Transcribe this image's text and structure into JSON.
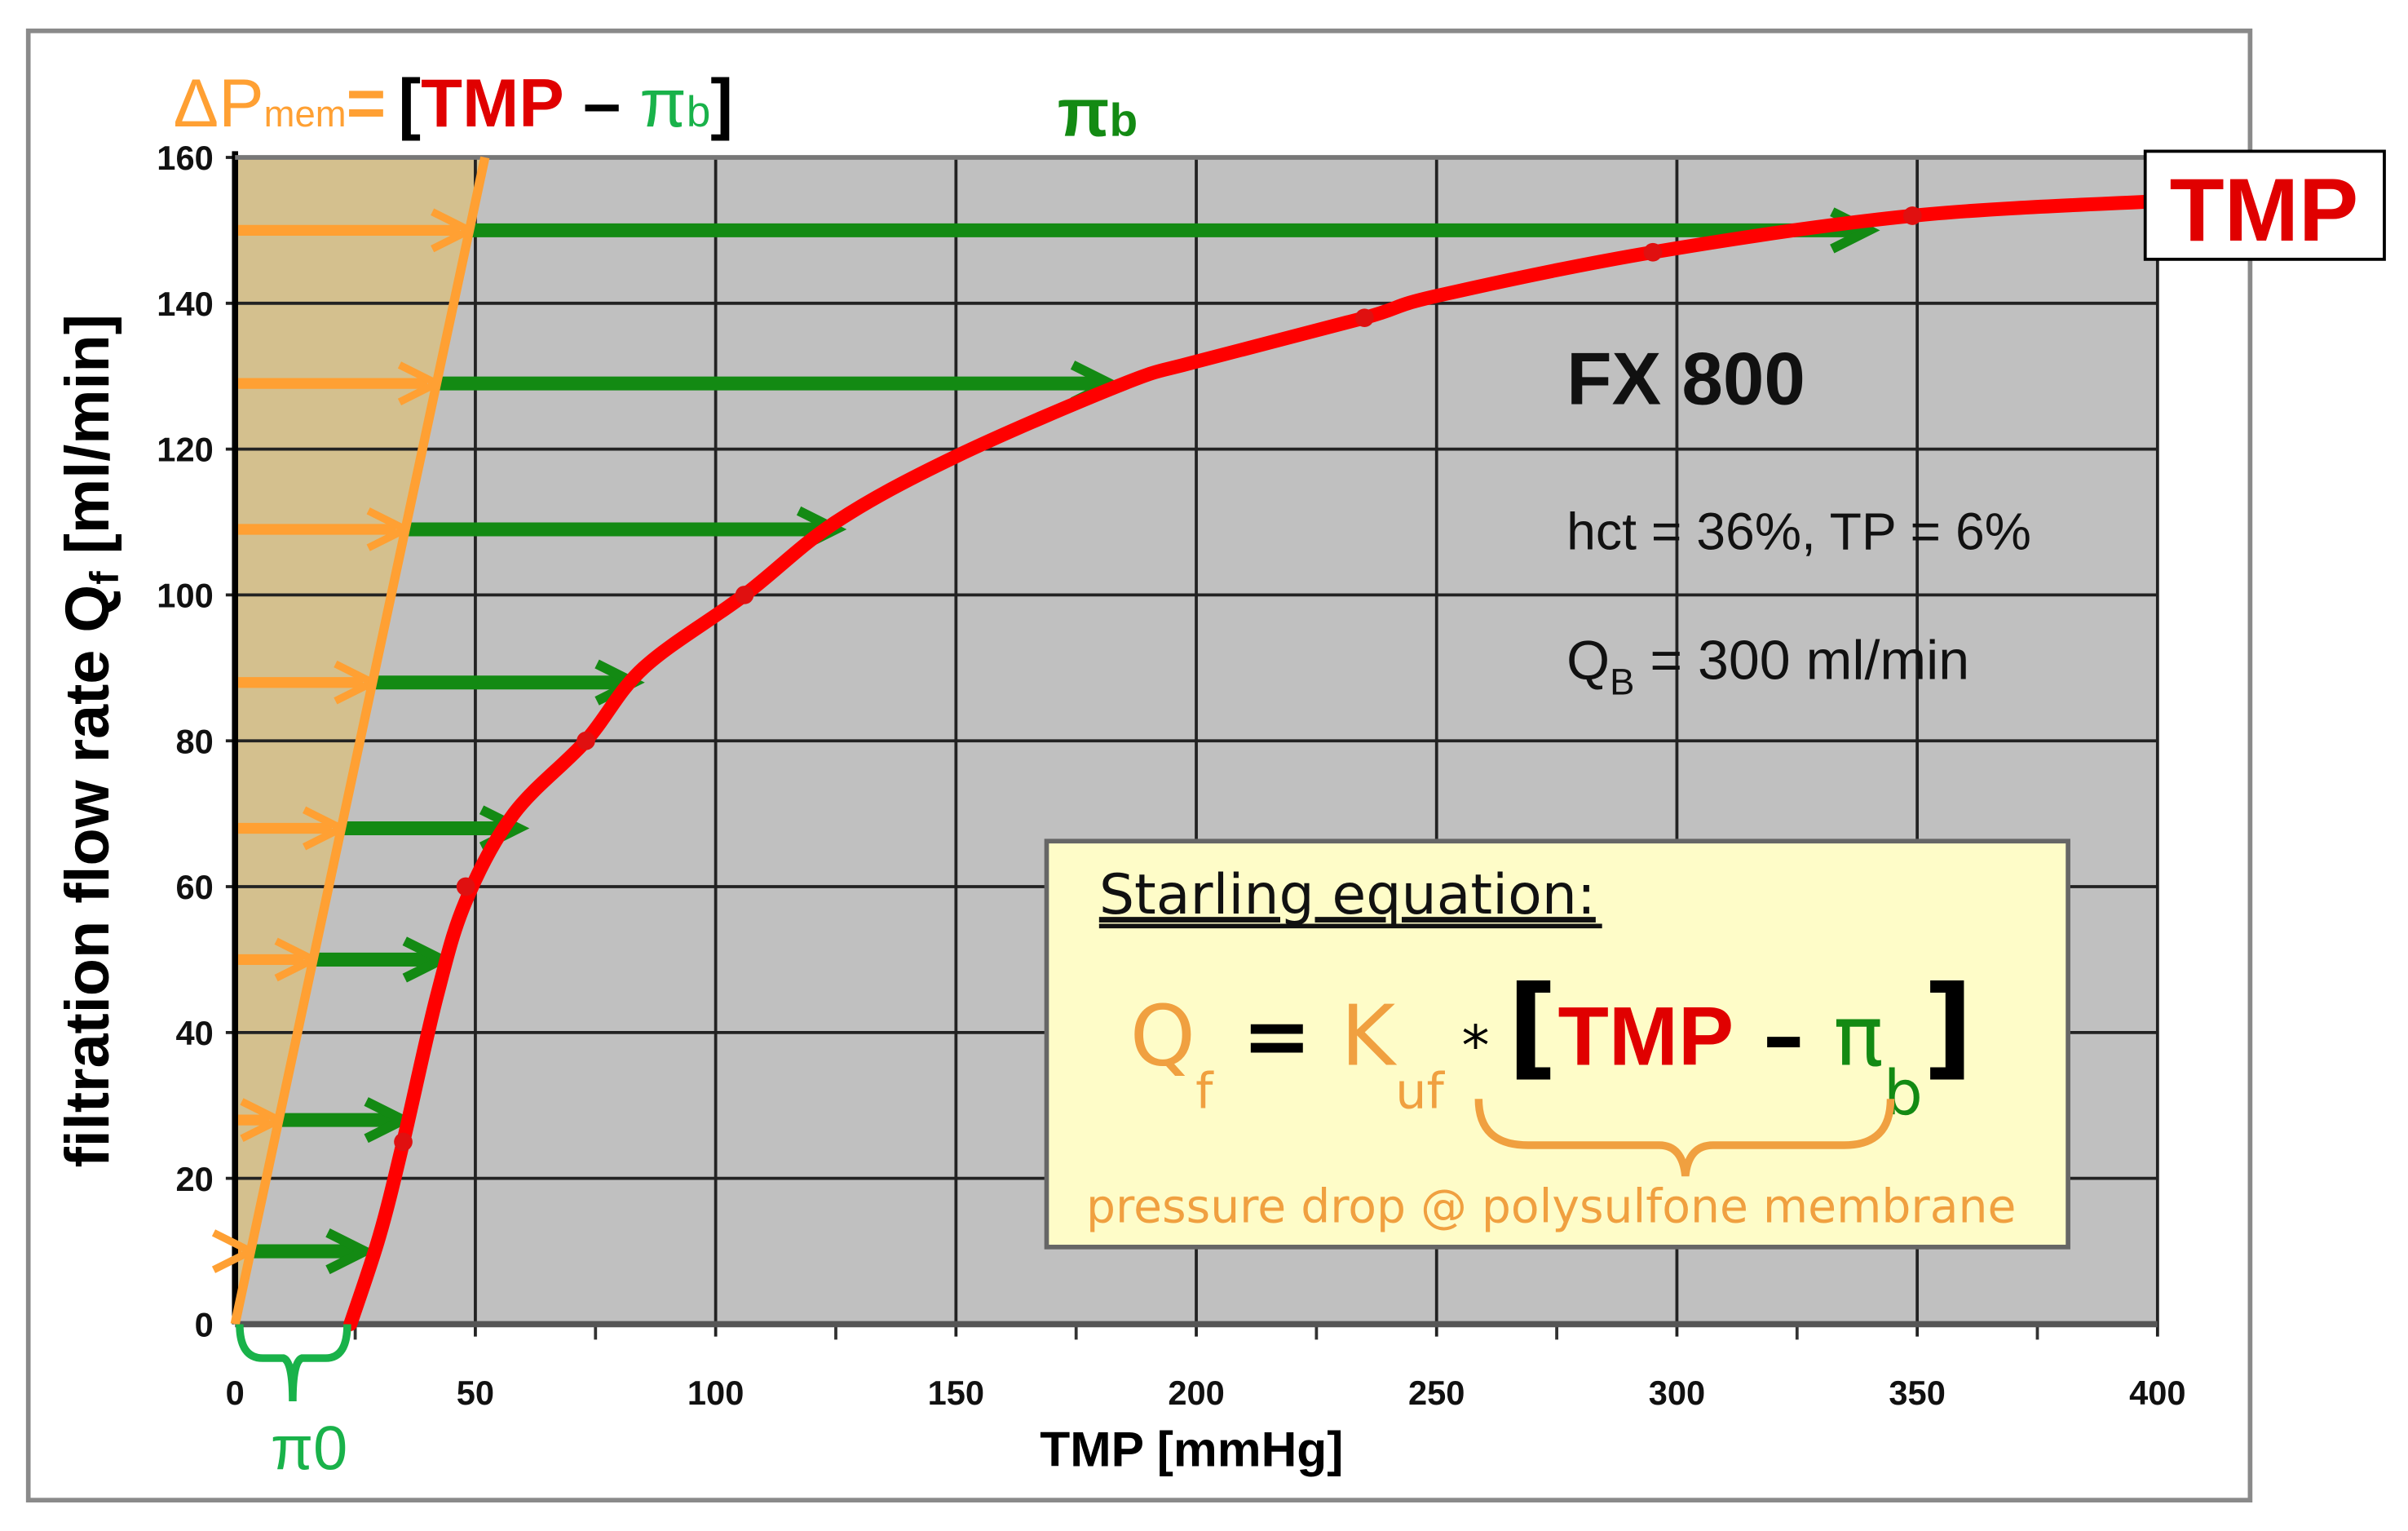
{
  "chart_data": {
    "type": "line",
    "xlabel": "TMP [mmHg]",
    "ylabel": "filtration flow rate Q",
    "ylabel_sub": "f",
    "ylabel_unit": " [ml/min]",
    "xlim": [
      0,
      400
    ],
    "ylim": [
      0,
      160
    ],
    "x_ticks": [
      0,
      50,
      100,
      150,
      200,
      250,
      300,
      350,
      400
    ],
    "y_ticks": [
      0,
      20,
      40,
      60,
      80,
      100,
      120,
      140,
      160
    ],
    "grid": true,
    "colors": {
      "tmp_curve": "#ff0000",
      "delta_p": "#ffa033",
      "pi_b": "#138a13",
      "pi0": "#19b24a",
      "plot_bg": "#c0c0c0",
      "shade": "#d4c08e",
      "box": "#fefcc8"
    },
    "tmp_curve": {
      "x": [
        24,
        30,
        35,
        42,
        48,
        58,
        73,
        85,
        106,
        125,
        150,
        185,
        200,
        235,
        250,
        295,
        349,
        400
      ],
      "y": [
        0,
        12,
        25,
        45,
        58,
        70,
        80,
        90,
        100,
        110,
        119,
        129,
        132,
        138,
        141,
        147,
        152,
        154
      ]
    },
    "measured_points": {
      "x": [
        35,
        48,
        73,
        106,
        235,
        295,
        349
      ],
      "y": [
        25,
        60,
        80,
        100,
        138,
        147,
        152
      ]
    },
    "delta_p_line": {
      "x": [
        0,
        52
      ],
      "y": [
        0,
        160
      ]
    },
    "arrow_levels": [
      10,
      28,
      50,
      68,
      88,
      109,
      129,
      150
    ],
    "green_arrow_end_tmp": [
      27,
      35,
      43,
      59,
      83,
      125,
      182,
      340
    ],
    "pi0_range": [
      0,
      24
    ]
  },
  "labels": {
    "delta": "ΔP",
    "mem": "mem",
    "eq": "=",
    "lbr": "[",
    "tmp": "TMP",
    "minus": " – ",
    "pi": "π",
    "b": "b",
    "rbr": "]",
    "pi_b_top": "π",
    "tmp_box": "TMP",
    "pi0": "π0"
  },
  "annotations": {
    "model": "FX 800",
    "conditions": "hct = 36%, TP = 6%",
    "qb_main": "Q",
    "qb_sub": "B",
    "qb_rest": " = 300 ml/min"
  },
  "starling": {
    "title": "Starling equation:",
    "q": "Q",
    "q_sub": "f",
    "eq": " = ",
    "k": "K",
    "k_sub": "uf",
    "times": " * ",
    "lbr": "[",
    "tmp": "TMP",
    "minus": " – ",
    "pi": "π",
    "pi_sub": "b",
    "rbr": "]",
    "note": "pressure drop @ polysulfone membrane"
  }
}
